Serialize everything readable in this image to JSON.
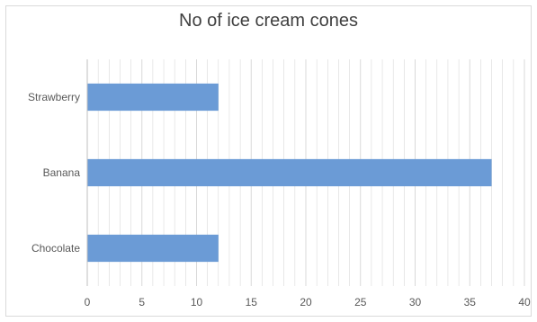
{
  "chart_data": {
    "type": "bar",
    "orientation": "horizontal",
    "title": "No of ice cream cones",
    "categories": [
      "Chocolate",
      "Banana",
      "Strawberry"
    ],
    "values": [
      12,
      37,
      12
    ],
    "xlim": [
      0,
      40
    ],
    "xticks": [
      0,
      5,
      10,
      15,
      20,
      25,
      30,
      35,
      40
    ],
    "xlabel": "",
    "ylabel": "",
    "grid": true,
    "legend": "none",
    "colors": {
      "bar": "#6b9bd6",
      "grid": "#d9d9d9",
      "text": "#595959",
      "title": "#404040"
    }
  }
}
